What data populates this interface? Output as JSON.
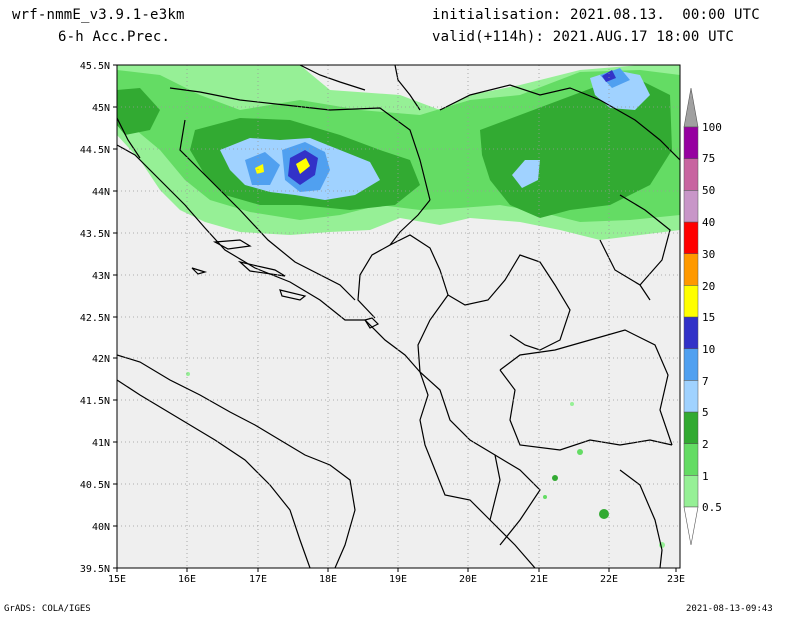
{
  "header": {
    "model": "wrf-nmmE_v3.9.1-e3km",
    "field": "6-h Acc.Prec.",
    "init": "initialisation: 2021.08.13.  00:00 UTC",
    "valid": "valid(+114h): 2021.AUG.17 18:00 UTC"
  },
  "footer": {
    "left": "GrADS: COLA/IGES",
    "right": "2021-08-13-09:43"
  },
  "map": {
    "lat_labels": [
      "45.5N",
      "45N",
      "44.5N",
      "44N",
      "43.5N",
      "43N",
      "42.5N",
      "42N",
      "41.5N",
      "41N",
      "40.5N",
      "40N",
      "39.5N"
    ],
    "lon_labels": [
      "15E",
      "16E",
      "17E",
      "18E",
      "19E",
      "20E",
      "21E",
      "22E",
      "23E"
    ],
    "background_color": "#efefef"
  },
  "legend": {
    "labels": [
      "0.5",
      "1",
      "2",
      "5",
      "7",
      "10",
      "15",
      "20",
      "30",
      "40",
      "50",
      "75",
      "100"
    ],
    "colors": [
      "#96f096",
      "#64dc64",
      "#32aa32",
      "#a0d2ff",
      "#50a0f0",
      "#3232c8",
      "#ffff00",
      "#ff9900",
      "#ff0000",
      "#c896c8",
      "#c864a0",
      "#9600a0",
      "#a0a0a0"
    ]
  }
}
